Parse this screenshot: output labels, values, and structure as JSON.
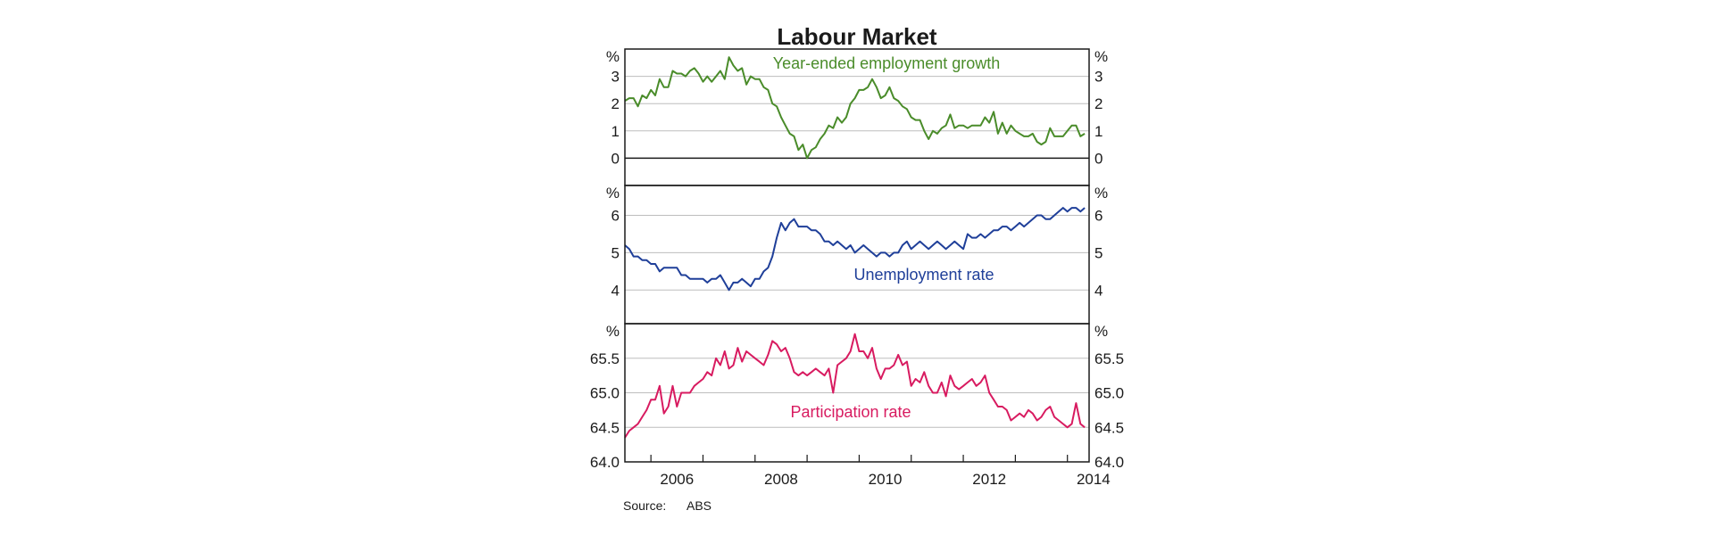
{
  "chart_data": {
    "type": "line",
    "title": "Labour Market",
    "source_label": "Source:",
    "source_value": "ABS",
    "x_ticks": [
      "2006",
      "2008",
      "2010",
      "2012",
      "2014"
    ],
    "xlim": [
      "2005-07",
      "2014-06"
    ],
    "panels": [
      {
        "unit": "%",
        "series_name": "Year-ended employment growth",
        "color": "#4a8c2a",
        "ylim": [
          -1,
          4
        ],
        "y_ticks": [
          "0",
          "1",
          "2",
          "3"
        ],
        "x": [
          "2005-07",
          "2005-08",
          "2005-09",
          "2005-10",
          "2005-11",
          "2005-12",
          "2006-01",
          "2006-02",
          "2006-03",
          "2006-04",
          "2006-05",
          "2006-06",
          "2006-07",
          "2006-08",
          "2006-09",
          "2006-10",
          "2006-11",
          "2006-12",
          "2007-01",
          "2007-02",
          "2007-03",
          "2007-04",
          "2007-05",
          "2007-06",
          "2007-07",
          "2007-08",
          "2007-09",
          "2007-10",
          "2007-11",
          "2007-12",
          "2008-01",
          "2008-02",
          "2008-03",
          "2008-04",
          "2008-05",
          "2008-06",
          "2008-07",
          "2008-08",
          "2008-09",
          "2008-10",
          "2008-11",
          "2008-12",
          "2009-01",
          "2009-02",
          "2009-03",
          "2009-04",
          "2009-05",
          "2009-06",
          "2009-07",
          "2009-08",
          "2009-09",
          "2009-10",
          "2009-11",
          "2009-12",
          "2010-01",
          "2010-02",
          "2010-03",
          "2010-04",
          "2010-05",
          "2010-06",
          "2010-07",
          "2010-08",
          "2010-09",
          "2010-10",
          "2010-11",
          "2010-12",
          "2011-01",
          "2011-02",
          "2011-03",
          "2011-04",
          "2011-05",
          "2011-06",
          "2011-07",
          "2011-08",
          "2011-09",
          "2011-10",
          "2011-11",
          "2011-12",
          "2012-01",
          "2012-02",
          "2012-03",
          "2012-04",
          "2012-05",
          "2012-06",
          "2012-07",
          "2012-08",
          "2012-09",
          "2012-10",
          "2012-11",
          "2012-12",
          "2013-01",
          "2013-02",
          "2013-03",
          "2013-04",
          "2013-05",
          "2013-06",
          "2013-07",
          "2013-08",
          "2013-09",
          "2013-10",
          "2013-11",
          "2013-12",
          "2014-01",
          "2014-02",
          "2014-03",
          "2014-04",
          "2014-05"
        ],
        "values": [
          2.1,
          2.2,
          2.2,
          1.9,
          2.3,
          2.2,
          2.5,
          2.3,
          2.9,
          2.6,
          2.6,
          3.2,
          3.1,
          3.1,
          3.0,
          3.2,
          3.3,
          3.1,
          2.8,
          3.0,
          2.8,
          3.0,
          3.2,
          2.9,
          3.7,
          3.4,
          3.2,
          3.3,
          2.7,
          3.0,
          2.9,
          2.9,
          2.6,
          2.5,
          2.0,
          1.9,
          1.5,
          1.2,
          0.9,
          0.8,
          0.3,
          0.5,
          0.0,
          0.3,
          0.4,
          0.7,
          0.9,
          1.2,
          1.1,
          1.5,
          1.3,
          1.5,
          2.0,
          2.2,
          2.5,
          2.5,
          2.6,
          2.9,
          2.6,
          2.2,
          2.3,
          2.6,
          2.2,
          2.1,
          1.9,
          1.8,
          1.5,
          1.4,
          1.4,
          1.0,
          0.7,
          1.0,
          0.9,
          1.1,
          1.2,
          1.6,
          1.1,
          1.2,
          1.2,
          1.1,
          1.2,
          1.2,
          1.2,
          1.5,
          1.3,
          1.7,
          0.9,
          1.3,
          0.9,
          1.2,
          1.0,
          0.9,
          0.8,
          0.8,
          0.9,
          0.6,
          0.5,
          0.6,
          1.1,
          0.8,
          0.8,
          0.8,
          1.0,
          1.2,
          1.2,
          0.8,
          0.9
        ]
      },
      {
        "unit": "%",
        "series_name": "Unemployment rate",
        "color": "#1f3f99",
        "ylim": [
          3.1,
          6.8
        ],
        "y_ticks": [
          "4",
          "5",
          "6"
        ],
        "x": [
          "2005-07",
          "2005-08",
          "2005-09",
          "2005-10",
          "2005-11",
          "2005-12",
          "2006-01",
          "2006-02",
          "2006-03",
          "2006-04",
          "2006-05",
          "2006-06",
          "2006-07",
          "2006-08",
          "2006-09",
          "2006-10",
          "2006-11",
          "2006-12",
          "2007-01",
          "2007-02",
          "2007-03",
          "2007-04",
          "2007-05",
          "2007-06",
          "2007-07",
          "2007-08",
          "2007-09",
          "2007-10",
          "2007-11",
          "2007-12",
          "2008-01",
          "2008-02",
          "2008-03",
          "2008-04",
          "2008-05",
          "2008-06",
          "2008-07",
          "2008-08",
          "2008-09",
          "2008-10",
          "2008-11",
          "2008-12",
          "2009-01",
          "2009-02",
          "2009-03",
          "2009-04",
          "2009-05",
          "2009-06",
          "2009-07",
          "2009-08",
          "2009-09",
          "2009-10",
          "2009-11",
          "2009-12",
          "2010-01",
          "2010-02",
          "2010-03",
          "2010-04",
          "2010-05",
          "2010-06",
          "2010-07",
          "2010-08",
          "2010-09",
          "2010-10",
          "2010-11",
          "2010-12",
          "2011-01",
          "2011-02",
          "2011-03",
          "2011-04",
          "2011-05",
          "2011-06",
          "2011-07",
          "2011-08",
          "2011-09",
          "2011-10",
          "2011-11",
          "2011-12",
          "2012-01",
          "2012-02",
          "2012-03",
          "2012-04",
          "2012-05",
          "2012-06",
          "2012-07",
          "2012-08",
          "2012-09",
          "2012-10",
          "2012-11",
          "2012-12",
          "2013-01",
          "2013-02",
          "2013-03",
          "2013-04",
          "2013-05",
          "2013-06",
          "2013-07",
          "2013-08",
          "2013-09",
          "2013-10",
          "2013-11",
          "2013-12",
          "2014-01",
          "2014-02",
          "2014-03",
          "2014-04",
          "2014-05"
        ],
        "values": [
          5.2,
          5.1,
          4.9,
          4.9,
          4.8,
          4.8,
          4.7,
          4.7,
          4.5,
          4.6,
          4.6,
          4.6,
          4.6,
          4.4,
          4.4,
          4.3,
          4.3,
          4.3,
          4.3,
          4.2,
          4.3,
          4.3,
          4.4,
          4.2,
          4.0,
          4.2,
          4.2,
          4.3,
          4.2,
          4.1,
          4.3,
          4.3,
          4.5,
          4.6,
          4.9,
          5.4,
          5.8,
          5.6,
          5.8,
          5.9,
          5.7,
          5.7,
          5.7,
          5.6,
          5.6,
          5.5,
          5.3,
          5.3,
          5.2,
          5.3,
          5.2,
          5.1,
          5.2,
          5.0,
          5.1,
          5.2,
          5.1,
          5.0,
          4.9,
          5.0,
          5.0,
          4.9,
          5.0,
          5.0,
          5.2,
          5.3,
          5.1,
          5.2,
          5.3,
          5.2,
          5.1,
          5.2,
          5.3,
          5.2,
          5.1,
          5.2,
          5.3,
          5.2,
          5.1,
          5.5,
          5.4,
          5.4,
          5.5,
          5.4,
          5.5,
          5.6,
          5.6,
          5.7,
          5.7,
          5.6,
          5.7,
          5.8,
          5.7,
          5.8,
          5.9,
          6.0,
          6.0,
          5.9,
          5.9,
          6.0,
          6.1,
          6.2,
          6.1,
          6.2,
          6.2,
          6.1,
          6.2
        ]
      },
      {
        "unit": "%",
        "series_name": "Participation rate",
        "color": "#d81b60",
        "ylim": [
          64.0,
          66.0
        ],
        "y_ticks": [
          "64.0",
          "64.5",
          "65.0",
          "65.5"
        ],
        "x": [
          "2005-07",
          "2005-08",
          "2005-09",
          "2005-10",
          "2005-11",
          "2005-12",
          "2006-01",
          "2006-02",
          "2006-03",
          "2006-04",
          "2006-05",
          "2006-06",
          "2006-07",
          "2006-08",
          "2006-09",
          "2006-10",
          "2006-11",
          "2006-12",
          "2007-01",
          "2007-02",
          "2007-03",
          "2007-04",
          "2007-05",
          "2007-06",
          "2007-07",
          "2007-08",
          "2007-09",
          "2007-10",
          "2007-11",
          "2007-12",
          "2008-01",
          "2008-02",
          "2008-03",
          "2008-04",
          "2008-05",
          "2008-06",
          "2008-07",
          "2008-08",
          "2008-09",
          "2008-10",
          "2008-11",
          "2008-12",
          "2009-01",
          "2009-02",
          "2009-03",
          "2009-04",
          "2009-05",
          "2009-06",
          "2009-07",
          "2009-08",
          "2009-09",
          "2009-10",
          "2009-11",
          "2009-12",
          "2010-01",
          "2010-02",
          "2010-03",
          "2010-04",
          "2010-05",
          "2010-06",
          "2010-07",
          "2010-08",
          "2010-09",
          "2010-10",
          "2010-11",
          "2010-12",
          "2011-01",
          "2011-02",
          "2011-03",
          "2011-04",
          "2011-05",
          "2011-06",
          "2011-07",
          "2011-08",
          "2011-09",
          "2011-10",
          "2011-11",
          "2011-12",
          "2012-01",
          "2012-02",
          "2012-03",
          "2012-04",
          "2012-05",
          "2012-06",
          "2012-07",
          "2012-08",
          "2012-09",
          "2012-10",
          "2012-11",
          "2012-12",
          "2013-01",
          "2013-02",
          "2013-03",
          "2013-04",
          "2013-05",
          "2013-06",
          "2013-07",
          "2013-08",
          "2013-09",
          "2013-10",
          "2013-11",
          "2013-12",
          "2014-01",
          "2014-02",
          "2014-03",
          "2014-04",
          "2014-05"
        ],
        "values": [
          64.35,
          64.45,
          64.5,
          64.55,
          64.65,
          64.75,
          64.9,
          64.9,
          65.1,
          64.7,
          64.8,
          65.1,
          64.8,
          65.0,
          65.0,
          65.0,
          65.1,
          65.15,
          65.2,
          65.3,
          65.25,
          65.5,
          65.4,
          65.6,
          65.35,
          65.4,
          65.65,
          65.45,
          65.6,
          65.55,
          65.5,
          65.45,
          65.4,
          65.55,
          65.75,
          65.7,
          65.6,
          65.65,
          65.5,
          65.3,
          65.25,
          65.3,
          65.25,
          65.3,
          65.35,
          65.3,
          65.25,
          65.35,
          65.0,
          65.4,
          65.45,
          65.5,
          65.6,
          65.85,
          65.6,
          65.6,
          65.5,
          65.65,
          65.35,
          65.2,
          65.35,
          65.35,
          65.4,
          65.55,
          65.4,
          65.45,
          65.1,
          65.2,
          65.15,
          65.3,
          65.1,
          65.0,
          65.0,
          65.15,
          64.95,
          65.25,
          65.1,
          65.05,
          65.1,
          65.15,
          65.2,
          65.1,
          65.15,
          65.25,
          65.0,
          64.9,
          64.8,
          64.8,
          64.75,
          64.6,
          64.65,
          64.7,
          64.65,
          64.75,
          64.7,
          64.6,
          64.65,
          64.75,
          64.8,
          64.65,
          64.6,
          64.55,
          64.5,
          64.55,
          64.85,
          64.55,
          64.5
        ]
      }
    ]
  }
}
